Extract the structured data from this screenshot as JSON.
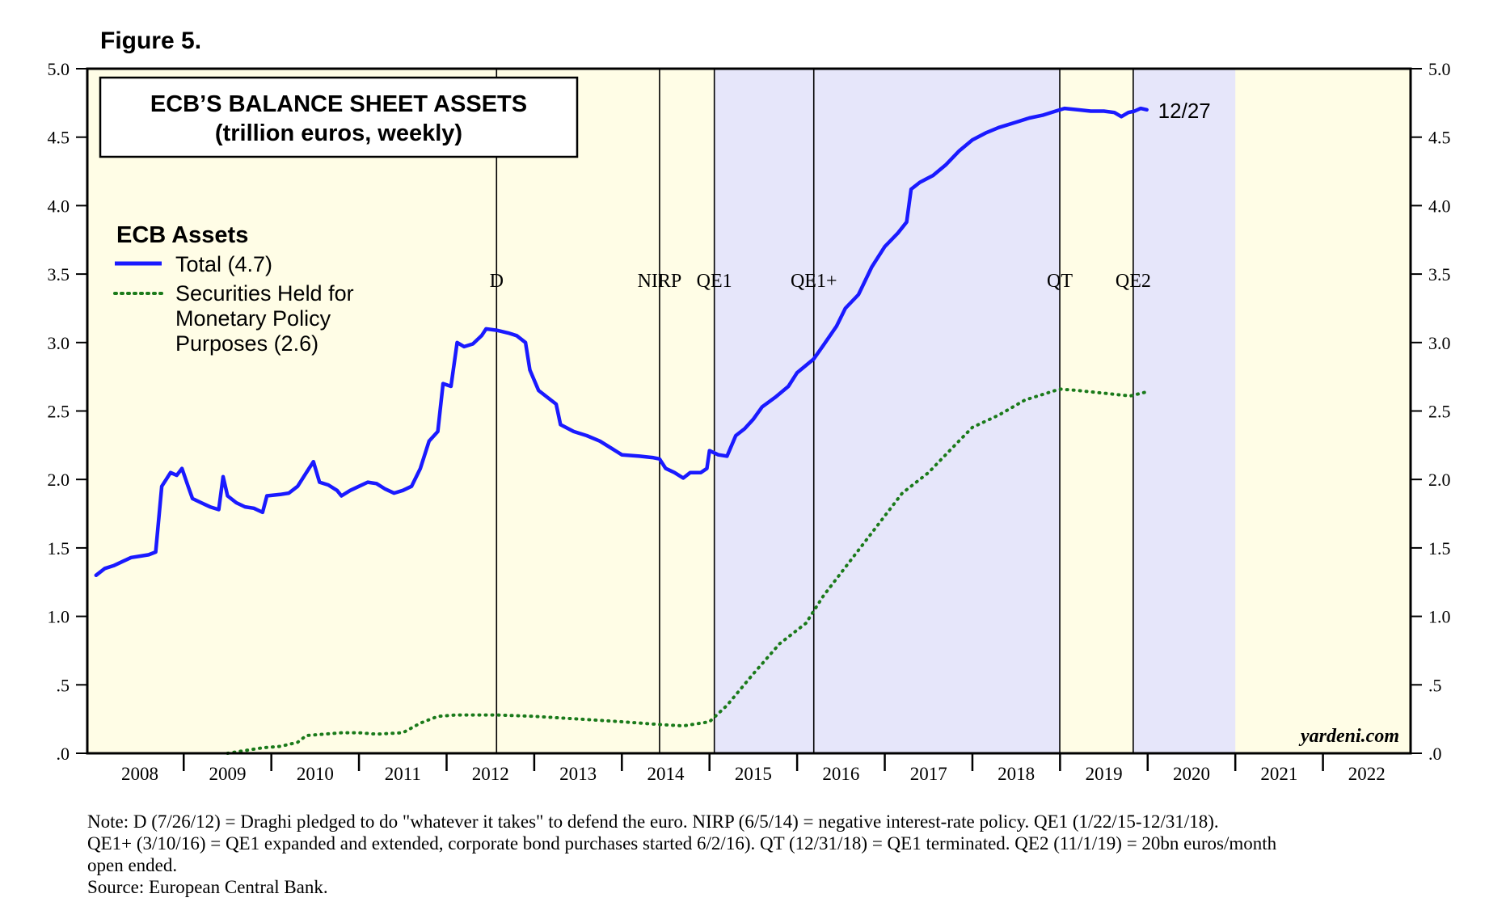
{
  "figure_label": "Figure 5.",
  "notes": [
    "Note: D (7/26/12) = Draghi pledged to do \"whatever it takes\" to defend the euro. NIRP (6/5/14) = negative interest-rate policy. QE1 (1/22/15-12/31/18).",
    "QE1+ (3/10/16) = QE1 expanded and extended, corporate bond purchases started 6/2/16). QT (12/31/18) = QE1 terminated. QE2 (11/1/19) = 20bn euros/month",
    "open ended.",
    "Source: European Central Bank."
  ],
  "chart_data": {
    "type": "line",
    "title": "ECB’S BALANCE SHEET ASSETS",
    "subtitle": "(trillion euros, weekly)",
    "legend_title": "ECB Assets",
    "legend_position": "top-left",
    "watermark": "yardeni.com",
    "end_label": "12/27",
    "grid": false,
    "ylim": [
      0,
      5
    ],
    "y_ticks": [
      0,
      0.5,
      1,
      1.5,
      2,
      2.5,
      3,
      3.5,
      4,
      4.5,
      5
    ],
    "y_tick_labels": [
      ".0",
      ".5",
      "1.0",
      "1.5",
      "2.0",
      "2.5",
      "3.0",
      "3.5",
      "4.0",
      "4.5",
      "5.0"
    ],
    "xlim": [
      2007.9,
      2023.0
    ],
    "x_tick_labels": [
      "2008",
      "2009",
      "2010",
      "2011",
      "2012",
      "2013",
      "2014",
      "2015",
      "2016",
      "2017",
      "2018",
      "2019",
      "2020",
      "2021",
      "2022"
    ],
    "shaded_periods": [
      {
        "start": 2015.055,
        "end": 2016.19,
        "color": "#e6e6fa"
      },
      {
        "start": 2016.19,
        "end": 2018.997,
        "color": "#e6e6fa"
      },
      {
        "start": 2019.835,
        "end": 2021.0,
        "color": "#e6e6fa"
      }
    ],
    "background_color": "#fffde6",
    "events": [
      {
        "label": "D",
        "x": 2012.57
      },
      {
        "label": "NIRP",
        "x": 2014.43
      },
      {
        "label": "QE1",
        "x": 2015.055
      },
      {
        "label": "QE1+",
        "x": 2016.19
      },
      {
        "label": "QT",
        "x": 2018.997
      },
      {
        "label": "QE2",
        "x": 2019.835
      }
    ],
    "series": [
      {
        "name": "Total (4.7)",
        "style": "solid",
        "color": "#1a1aff",
        "points": [
          [
            2008.0,
            1.3
          ],
          [
            2008.1,
            1.35
          ],
          [
            2008.2,
            1.37
          ],
          [
            2008.3,
            1.4
          ],
          [
            2008.4,
            1.43
          ],
          [
            2008.5,
            1.44
          ],
          [
            2008.6,
            1.45
          ],
          [
            2008.68,
            1.47
          ],
          [
            2008.75,
            1.95
          ],
          [
            2008.8,
            2.0
          ],
          [
            2008.85,
            2.05
          ],
          [
            2008.92,
            2.03
          ],
          [
            2008.98,
            2.08
          ],
          [
            2009.05,
            1.95
          ],
          [
            2009.1,
            1.86
          ],
          [
            2009.2,
            1.83
          ],
          [
            2009.3,
            1.8
          ],
          [
            2009.4,
            1.78
          ],
          [
            2009.45,
            2.02
          ],
          [
            2009.5,
            1.88
          ],
          [
            2009.6,
            1.83
          ],
          [
            2009.7,
            1.8
          ],
          [
            2009.8,
            1.79
          ],
          [
            2009.9,
            1.76
          ],
          [
            2009.95,
            1.88
          ],
          [
            2010.1,
            1.89
          ],
          [
            2010.2,
            1.9
          ],
          [
            2010.3,
            1.95
          ],
          [
            2010.4,
            2.05
          ],
          [
            2010.48,
            2.13
          ],
          [
            2010.55,
            1.98
          ],
          [
            2010.65,
            1.96
          ],
          [
            2010.75,
            1.92
          ],
          [
            2010.8,
            1.88
          ],
          [
            2010.9,
            1.92
          ],
          [
            2011.0,
            1.95
          ],
          [
            2011.1,
            1.98
          ],
          [
            2011.2,
            1.97
          ],
          [
            2011.3,
            1.93
          ],
          [
            2011.4,
            1.9
          ],
          [
            2011.5,
            1.92
          ],
          [
            2011.6,
            1.95
          ],
          [
            2011.7,
            2.08
          ],
          [
            2011.8,
            2.28
          ],
          [
            2011.9,
            2.35
          ],
          [
            2011.96,
            2.7
          ],
          [
            2012.05,
            2.68
          ],
          [
            2012.12,
            3.0
          ],
          [
            2012.2,
            2.97
          ],
          [
            2012.3,
            2.99
          ],
          [
            2012.4,
            3.05
          ],
          [
            2012.45,
            3.1
          ],
          [
            2012.57,
            3.09
          ],
          [
            2012.7,
            3.07
          ],
          [
            2012.8,
            3.05
          ],
          [
            2012.9,
            3.0
          ],
          [
            2012.95,
            2.8
          ],
          [
            2013.05,
            2.65
          ],
          [
            2013.15,
            2.6
          ],
          [
            2013.25,
            2.55
          ],
          [
            2013.3,
            2.4
          ],
          [
            2013.45,
            2.35
          ],
          [
            2013.6,
            2.32
          ],
          [
            2013.75,
            2.28
          ],
          [
            2013.9,
            2.22
          ],
          [
            2014.0,
            2.18
          ],
          [
            2014.2,
            2.17
          ],
          [
            2014.35,
            2.16
          ],
          [
            2014.43,
            2.15
          ],
          [
            2014.5,
            2.08
          ],
          [
            2014.6,
            2.05
          ],
          [
            2014.7,
            2.01
          ],
          [
            2014.78,
            2.05
          ],
          [
            2014.9,
            2.05
          ],
          [
            2014.97,
            2.08
          ],
          [
            2015.0,
            2.21
          ],
          [
            2015.1,
            2.18
          ],
          [
            2015.2,
            2.17
          ],
          [
            2015.3,
            2.32
          ],
          [
            2015.4,
            2.37
          ],
          [
            2015.5,
            2.44
          ],
          [
            2015.6,
            2.53
          ],
          [
            2015.75,
            2.6
          ],
          [
            2015.9,
            2.68
          ],
          [
            2016.0,
            2.78
          ],
          [
            2016.19,
            2.88
          ],
          [
            2016.3,
            2.98
          ],
          [
            2016.45,
            3.12
          ],
          [
            2016.55,
            3.25
          ],
          [
            2016.7,
            3.35
          ],
          [
            2016.85,
            3.55
          ],
          [
            2017.0,
            3.7
          ],
          [
            2017.15,
            3.8
          ],
          [
            2017.25,
            3.88
          ],
          [
            2017.3,
            4.12
          ],
          [
            2017.4,
            4.17
          ],
          [
            2017.55,
            4.22
          ],
          [
            2017.7,
            4.3
          ],
          [
            2017.85,
            4.4
          ],
          [
            2018.0,
            4.48
          ],
          [
            2018.15,
            4.53
          ],
          [
            2018.3,
            4.57
          ],
          [
            2018.5,
            4.61
          ],
          [
            2018.65,
            4.64
          ],
          [
            2018.8,
            4.66
          ],
          [
            2018.95,
            4.69
          ],
          [
            2019.05,
            4.71
          ],
          [
            2019.2,
            4.7
          ],
          [
            2019.35,
            4.69
          ],
          [
            2019.5,
            4.69
          ],
          [
            2019.62,
            4.68
          ],
          [
            2019.7,
            4.65
          ],
          [
            2019.78,
            4.68
          ],
          [
            2019.85,
            4.69
          ],
          [
            2019.92,
            4.71
          ],
          [
            2019.99,
            4.7
          ]
        ]
      },
      {
        "name": "Securities Held for Monetary Policy Purposes (2.6)",
        "style": "dotted",
        "color": "#1a7a1a",
        "points": [
          [
            2009.5,
            0.0
          ],
          [
            2009.7,
            0.02
          ],
          [
            2009.9,
            0.04
          ],
          [
            2010.1,
            0.05
          ],
          [
            2010.3,
            0.08
          ],
          [
            2010.4,
            0.13
          ],
          [
            2010.6,
            0.14
          ],
          [
            2010.8,
            0.15
          ],
          [
            2011.0,
            0.15
          ],
          [
            2011.2,
            0.14
          ],
          [
            2011.5,
            0.15
          ],
          [
            2011.7,
            0.22
          ],
          [
            2011.9,
            0.27
          ],
          [
            2012.1,
            0.28
          ],
          [
            2012.57,
            0.28
          ],
          [
            2013.0,
            0.27
          ],
          [
            2013.5,
            0.25
          ],
          [
            2014.0,
            0.23
          ],
          [
            2014.43,
            0.21
          ],
          [
            2014.7,
            0.2
          ],
          [
            2015.0,
            0.23
          ],
          [
            2015.2,
            0.35
          ],
          [
            2015.5,
            0.58
          ],
          [
            2015.8,
            0.8
          ],
          [
            2016.1,
            0.95
          ],
          [
            2016.3,
            1.15
          ],
          [
            2016.6,
            1.4
          ],
          [
            2016.9,
            1.65
          ],
          [
            2017.2,
            1.9
          ],
          [
            2017.5,
            2.05
          ],
          [
            2017.8,
            2.25
          ],
          [
            2018.0,
            2.38
          ],
          [
            2018.3,
            2.47
          ],
          [
            2018.6,
            2.58
          ],
          [
            2018.997,
            2.66
          ],
          [
            2019.2,
            2.65
          ],
          [
            2019.5,
            2.63
          ],
          [
            2019.8,
            2.61
          ],
          [
            2019.99,
            2.64
          ]
        ]
      }
    ]
  }
}
